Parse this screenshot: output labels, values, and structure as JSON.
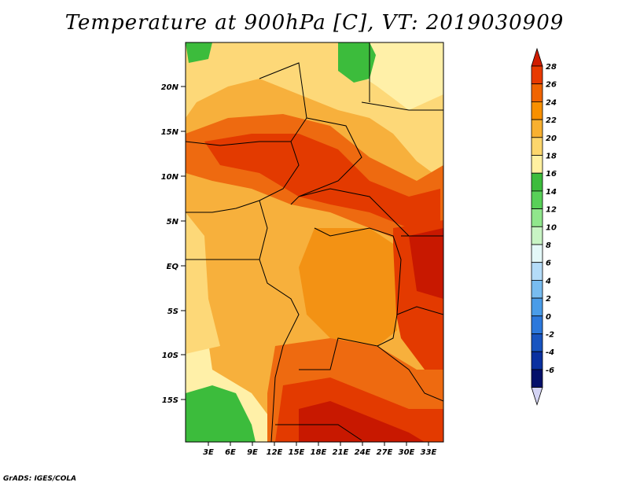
{
  "title": "Temperature at 900hPa [C], VT: 2019030909",
  "credit": "GrADS: IGES/COLA",
  "lat_labels": [
    "20N",
    "15N",
    "10N",
    "5N",
    "EQ",
    "5S",
    "10S",
    "15S"
  ],
  "lon_labels": [
    "3E",
    "6E",
    "9E",
    "12E",
    "15E",
    "18E",
    "21E",
    "24E",
    "27E",
    "30E",
    "33E"
  ],
  "colorbar": {
    "labels": [
      "28",
      "26",
      "24",
      "22",
      "20",
      "18",
      "16",
      "14",
      "12",
      "10",
      "8",
      "6",
      "4",
      "2",
      "0",
      "-2",
      "-4",
      "-6"
    ],
    "colors": [
      "#d01c00",
      "#e83a00",
      "#f06400",
      "#f89000",
      "#f8b030",
      "#fcd66c",
      "#fff0a0",
      "#3cbc3c",
      "#58d058",
      "#90e68c",
      "#c8f4c4",
      "#e4f8f8",
      "#b4dcf8",
      "#78bcf0",
      "#4a9ce8",
      "#2c78dc",
      "#1854c0",
      "#0a30a0",
      "#04106a",
      "#d4d4f4"
    ]
  },
  "map_colors": {
    "hot": "#c81800",
    "red": "#e33a00",
    "dark_orange": "#ee6a10",
    "orange": "#f39214",
    "light_orange": "#f7b03c",
    "yellow": "#fdd878",
    "pale_yellow": "#fff0a8",
    "green": "#3cbc3c"
  }
}
